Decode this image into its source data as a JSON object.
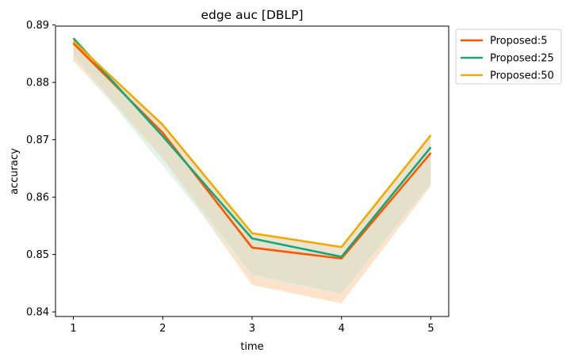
{
  "chart_data": {
    "type": "line",
    "title": "edge auc [DBLP]",
    "xlabel": "time",
    "ylabel": "accuracy",
    "x": [
      1,
      2,
      3,
      4,
      5
    ],
    "xticks": [
      "1",
      "2",
      "3",
      "4",
      "5"
    ],
    "xlim": [
      0.8,
      5.2
    ],
    "ylim": [
      0.8392,
      0.8898
    ],
    "yticks": [
      "0.84",
      "0.85",
      "0.86",
      "0.87",
      "0.88",
      "0.89"
    ],
    "ytick_values": [
      0.84,
      0.85,
      0.86,
      0.87,
      0.88,
      0.89
    ],
    "grid": false,
    "legend_position": "outside-top-right",
    "series": [
      {
        "name": "Proposed:5",
        "color": "#ff5500",
        "values": [
          0.8868,
          0.8712,
          0.8512,
          0.8493,
          0.8677
        ],
        "band_lower": [
          0.8838,
          0.8667,
          0.8447,
          0.8415,
          0.8619
        ],
        "band_upper": [
          0.8868,
          0.8712,
          0.8512,
          0.8493,
          0.8677
        ],
        "band_color": "#ffd8b8"
      },
      {
        "name": "Proposed:25",
        "color": "#13a878",
        "values": [
          0.8877,
          0.8706,
          0.8528,
          0.8496,
          0.8687
        ],
        "band_lower": [
          0.8846,
          0.8655,
          0.8463,
          0.843,
          0.8622
        ],
        "band_upper": [
          0.8877,
          0.8706,
          0.8528,
          0.8496,
          0.8687
        ],
        "band_color": "#d9f0e4"
      },
      {
        "name": "Proposed:50",
        "color": "#f2aa00",
        "values": [
          0.8872,
          0.8726,
          0.8537,
          0.8513,
          0.8708
        ],
        "band_lower": [
          0.8847,
          0.8668,
          0.8465,
          0.8432,
          0.8624
        ],
        "band_upper": [
          0.8872,
          0.8726,
          0.8537,
          0.8513,
          0.8708
        ],
        "band_color": "#e6dbc1"
      }
    ]
  }
}
